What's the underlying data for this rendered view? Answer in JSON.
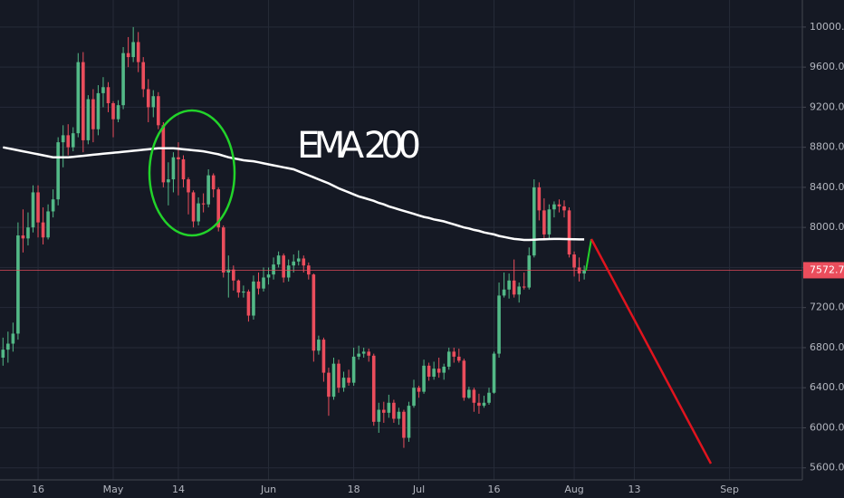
{
  "chart_data": {
    "type": "candlestick",
    "annotation": "EMA 200",
    "up_color": "#53b987",
    "down_color": "#eb4d5c",
    "grid": true,
    "last_price": 7572.7,
    "last_price_color": "#eb4d5c",
    "ylim": [
      5480,
      10270
    ],
    "yticks": [
      {
        "value": 5600,
        "label": "5600.0"
      },
      {
        "value": 6000,
        "label": "6000.0"
      },
      {
        "value": 6400,
        "label": "6400.0"
      },
      {
        "value": 6800,
        "label": "6800.0"
      },
      {
        "value": 7200,
        "label": "7200.0"
      },
      {
        "value": 7600,
        "label": "7600.0"
      },
      {
        "value": 8000,
        "label": "8000.0"
      },
      {
        "value": 8400,
        "label": "8400.0"
      },
      {
        "value": 8800,
        "label": "8800.0"
      },
      {
        "value": 9200,
        "label": "9200.0"
      },
      {
        "value": 9600,
        "label": "9600.0"
      },
      {
        "value": 10000,
        "label": "10000.0"
      }
    ],
    "categories": [
      null,
      null,
      null,
      null,
      null,
      null,
      null,
      "16",
      null,
      null,
      null,
      null,
      null,
      null,
      null,
      null,
      null,
      null,
      null,
      null,
      null,
      null,
      "May",
      null,
      null,
      null,
      null,
      null,
      null,
      null,
      null,
      null,
      null,
      null,
      null,
      "14",
      null,
      null,
      null,
      null,
      null,
      null,
      null,
      null,
      null,
      null,
      null,
      null,
      null,
      null,
      null,
      null,
      null,
      "Jun",
      null,
      null,
      null,
      null,
      null,
      null,
      null,
      null,
      null,
      null,
      null,
      null,
      null,
      null,
      null,
      null,
      "18",
      null,
      null,
      null,
      null,
      null,
      null,
      null,
      null,
      null,
      null,
      null,
      null,
      "Jul",
      null,
      null,
      null,
      null,
      null,
      null,
      null,
      null,
      null,
      null,
      null,
      null,
      null,
      null,
      "16",
      null,
      null,
      null,
      null,
      null,
      null,
      null,
      null,
      null,
      null,
      null,
      null,
      null,
      null,
      null,
      "Aug",
      null,
      null,
      null,
      null,
      null,
      null,
      null,
      null,
      null,
      null,
      null,
      "13",
      null,
      null,
      null,
      null,
      null,
      null,
      null,
      null,
      null,
      null,
      null,
      null,
      null,
      null,
      null,
      null,
      null,
      null,
      "Sep"
    ],
    "open": [
      6700,
      6780,
      6840,
      6940,
      7920,
      7890,
      8000,
      8350,
      8050,
      7900,
      8160,
      8280,
      8850,
      8920,
      8800,
      8940,
      9650,
      8870,
      9280,
      8980,
      9340,
      9400,
      9240,
      9080,
      9220,
      9740,
      9700,
      9850,
      9650,
      9380,
      9200,
      9310,
      9020,
      8450,
      8480,
      8700,
      8680,
      8480,
      8350,
      8060,
      8240,
      8230,
      8520,
      8380,
      8000,
      7550,
      7580,
      7470,
      7350,
      7360,
      7120,
      7460,
      7390,
      7500,
      7530,
      7630,
      7720,
      7500,
      7620,
      7660,
      7690,
      7620,
      7530,
      6770,
      6880,
      6550,
      6310,
      6640,
      6400,
      6500,
      6450,
      6710,
      6740,
      6760,
      6720,
      6060,
      6180,
      6150,
      6250,
      6090,
      6160,
      5900,
      6220,
      6400,
      6360,
      6620,
      6510,
      6590,
      6550,
      6610,
      6760,
      6710,
      6670,
      6300,
      6380,
      6250,
      6220,
      6250,
      6350,
      6740,
      7320,
      7380,
      7470,
      7330,
      7410,
      7400,
      7720,
      8400,
      8170,
      7930,
      8180,
      8230,
      8210,
      8170,
      7730,
      7600,
      7540,
      null,
      null,
      null,
      null,
      null,
      null,
      null,
      null,
      null,
      null,
      null,
      null,
      null,
      null,
      null,
      null,
      null,
      null,
      null,
      null,
      null,
      null,
      null,
      null,
      null,
      null,
      null,
      null,
      null
    ],
    "high": [
      6900,
      6960,
      7050,
      8050,
      8180,
      8150,
      8420,
      8420,
      8200,
      8230,
      8380,
      8900,
      9020,
      9030,
      9000,
      9740,
      9750,
      9320,
      9380,
      9420,
      9500,
      9450,
      9260,
      9270,
      9800,
      9900,
      10000,
      9950,
      9700,
      9480,
      9370,
      9350,
      9050,
      8650,
      8750,
      8850,
      8720,
      8500,
      8370,
      8300,
      8340,
      8580,
      8540,
      8400,
      8020,
      7720,
      7620,
      7480,
      7420,
      7380,
      7520,
      7550,
      7600,
      7600,
      7700,
      7760,
      7740,
      7680,
      7730,
      7770,
      7720,
      7650,
      7540,
      6920,
      6900,
      6600,
      6700,
      6680,
      6560,
      6580,
      6800,
      6820,
      6800,
      6790,
      6740,
      6250,
      6260,
      6330,
      6280,
      6200,
      6180,
      6260,
      6480,
      6420,
      6680,
      6650,
      6660,
      6700,
      6640,
      6800,
      6800,
      6790,
      6690,
      6410,
      6400,
      6340,
      6320,
      6400,
      6760,
      7450,
      7550,
      7540,
      7680,
      7450,
      7550,
      7800,
      8480,
      8450,
      8290,
      8230,
      8260,
      8280,
      8270,
      8200,
      7760,
      7700,
      7620,
      null,
      null,
      null,
      null,
      null,
      null,
      null,
      null,
      null,
      null,
      null,
      null,
      null,
      null,
      null,
      null,
      null,
      null,
      null,
      null,
      null,
      null,
      null,
      null,
      null,
      null,
      null,
      null,
      null
    ],
    "low": [
      6620,
      6650,
      6760,
      6880,
      7750,
      7820,
      7950,
      7900,
      7830,
      7880,
      8100,
      8220,
      8600,
      8720,
      8760,
      8900,
      8750,
      8830,
      8850,
      8920,
      9200,
      9150,
      8900,
      9050,
      9180,
      9600,
      9650,
      9550,
      9300,
      9050,
      9100,
      8980,
      8400,
      8220,
      8350,
      8320,
      8400,
      8130,
      8000,
      8020,
      8150,
      8200,
      8300,
      7960,
      7500,
      7300,
      7370,
      7300,
      7300,
      7060,
      7080,
      7330,
      7360,
      7430,
      7480,
      7600,
      7450,
      7460,
      7550,
      7620,
      7550,
      7480,
      6660,
      6730,
      6460,
      6120,
      6280,
      6350,
      6360,
      6420,
      6420,
      6680,
      6700,
      6660,
      6020,
      5950,
      6050,
      6100,
      6050,
      6030,
      5800,
      5860,
      6200,
      6300,
      6340,
      6470,
      6480,
      6500,
      6480,
      6580,
      6650,
      6650,
      6270,
      6290,
      6160,
      6140,
      6200,
      6230,
      6340,
      6700,
      7300,
      7290,
      7300,
      7250,
      7380,
      7380,
      7700,
      8070,
      7880,
      7890,
      8100,
      8150,
      8100,
      7700,
      7510,
      7460,
      7480,
      null,
      null,
      null,
      null,
      null,
      null,
      null,
      null,
      null,
      null,
      null,
      null,
      null,
      null,
      null,
      null,
      null,
      null,
      null,
      null,
      null,
      null,
      null,
      null,
      null,
      null,
      null,
      null,
      null
    ],
    "close": [
      6780,
      6840,
      6940,
      7920,
      7890,
      8000,
      8350,
      8050,
      7900,
      8160,
      8280,
      8850,
      8920,
      8800,
      8940,
      9650,
      8870,
      9280,
      8980,
      9340,
      9400,
      9240,
      9080,
      9220,
      9740,
      9700,
      9850,
      9650,
      9380,
      9200,
      9310,
      9020,
      8450,
      8480,
      8700,
      8680,
      8480,
      8350,
      8060,
      8240,
      8230,
      8520,
      8380,
      8000,
      7550,
      7580,
      7470,
      7350,
      7360,
      7120,
      7460,
      7390,
      7500,
      7530,
      7630,
      7720,
      7500,
      7620,
      7660,
      7690,
      7620,
      7530,
      6770,
      6880,
      6550,
      6310,
      6640,
      6400,
      6500,
      6450,
      6710,
      6740,
      6760,
      6720,
      6060,
      6180,
      6150,
      6250,
      6090,
      6160,
      5900,
      6220,
      6400,
      6360,
      6620,
      6510,
      6590,
      6550,
      6610,
      6760,
      6710,
      6670,
      6300,
      6380,
      6250,
      6220,
      6250,
      6350,
      6740,
      7320,
      7380,
      7470,
      7330,
      7410,
      7400,
      7720,
      8400,
      8170,
      7930,
      8180,
      8230,
      8210,
      8170,
      7730,
      7600,
      7540,
      7572.7,
      null,
      null,
      null,
      null,
      null,
      null,
      null,
      null,
      null,
      null,
      null,
      null,
      null,
      null,
      null,
      null,
      null,
      null,
      null,
      null,
      null,
      null,
      null,
      null,
      null,
      null,
      null,
      null,
      null
    ],
    "ema": {
      "color": "#ffffff",
      "values": [
        8800,
        8790,
        8780,
        8770,
        8760,
        8750,
        8740,
        8730,
        8720,
        8710,
        8700,
        8700,
        8700,
        8700,
        8705,
        8710,
        8715,
        8720,
        8725,
        8730,
        8735,
        8740,
        8745,
        8750,
        8755,
        8760,
        8765,
        8770,
        8775,
        8780,
        8785,
        8790,
        8790,
        8790,
        8790,
        8785,
        8780,
        8775,
        8770,
        8765,
        8760,
        8750,
        8740,
        8730,
        8715,
        8700,
        8690,
        8680,
        8670,
        8665,
        8660,
        8650,
        8640,
        8630,
        8620,
        8610,
        8600,
        8590,
        8580,
        8560,
        8540,
        8520,
        8500,
        8480,
        8460,
        8440,
        8415,
        8390,
        8370,
        8350,
        8330,
        8310,
        8295,
        8280,
        8265,
        8245,
        8230,
        8210,
        8195,
        8180,
        8165,
        8150,
        8135,
        8120,
        8105,
        8095,
        8080,
        8070,
        8060,
        8045,
        8030,
        8015,
        8000,
        7990,
        7975,
        7965,
        7950,
        7940,
        7930,
        7915,
        7905,
        7895,
        7885,
        7880,
        7875,
        7875,
        7878,
        7880,
        7882,
        7884,
        7885,
        7885,
        7884,
        7883,
        7882,
        7880,
        7880,
        null,
        null,
        null,
        null,
        null,
        null,
        null,
        null,
        null,
        null,
        null,
        null,
        null,
        null,
        null,
        null,
        null,
        null,
        null,
        null,
        null,
        null,
        null,
        null,
        null,
        null,
        null,
        null,
        null
      ]
    }
  }
}
